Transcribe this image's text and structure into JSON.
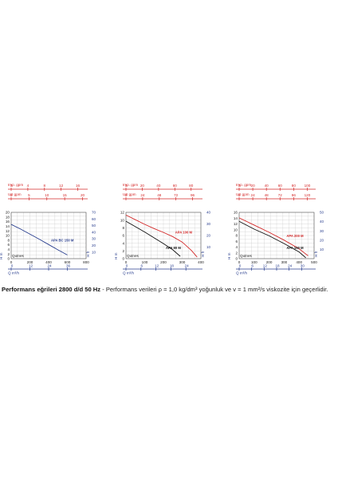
{
  "caption": {
    "bold": "Performans eğrileri 2800 d/d 50 Hz",
    "rest": " - Performans verileri ρ = 1,0 kg/dm³ yoğunluk ve  v = 1 mm²/s viskozite için geçerlidir."
  },
  "colors": {
    "blue": "#2a3f8f",
    "red": "#d42a2a",
    "black": "#111111",
    "grid": "#c8c8c8"
  },
  "chart_data": [
    {
      "type": "line",
      "name": "chart-1",
      "top_axes": [
        {
          "unit_label": "Imp. gpm",
          "color": "#d42a2a",
          "ticks": [
            "0",
            "4",
            "8",
            "12",
            "16"
          ],
          "range": [
            0,
            18
          ]
        },
        {
          "unit_label": "US gpm",
          "color": "#d42a2a",
          "ticks": [
            "0",
            "5",
            "10",
            "15",
            "20"
          ],
          "range": [
            0,
            21
          ]
        }
      ],
      "xlabel": "Qutnes",
      "xlabel_bottom": "Q m³/h",
      "xlim": [
        0,
        800
      ],
      "xticks": [
        0,
        200,
        400,
        600,
        800
      ],
      "xticks_bottom": [
        "0",
        "12",
        "24",
        "36"
      ],
      "ylim": [
        0,
        20
      ],
      "yticks": [
        0,
        2,
        4,
        6,
        8,
        10,
        12,
        14,
        16,
        18,
        20
      ],
      "ylabel_left": "H m",
      "right_axis": {
        "ylim": [
          0,
          70
        ],
        "yticks": [
          0,
          10,
          20,
          30,
          40,
          50,
          60,
          70
        ],
        "label": "H ft"
      },
      "series": [
        {
          "name": "APA BC 150 M",
          "color": "#2a3f8f",
          "x": [
            0,
            100,
            200,
            300,
            400,
            500,
            600
          ],
          "y": [
            14.8,
            12.8,
            10.6,
            8.4,
            6.1,
            3.8,
            1.6
          ]
        }
      ]
    },
    {
      "type": "line",
      "name": "chart-2",
      "top_axes": [
        {
          "unit_label": "Imp. gpm",
          "color": "#d42a2a",
          "ticks": [
            "0",
            "20",
            "40",
            "60",
            "80"
          ],
          "range": [
            0,
            92
          ]
        },
        {
          "unit_label": "US gpm",
          "color": "#d42a2a",
          "ticks": [
            "0",
            "24",
            "48",
            "72",
            "96"
          ],
          "range": [
            0,
            108
          ]
        }
      ],
      "xlabel": "Qutnes",
      "xlabel_bottom": "Q m³/h",
      "xlim": [
        0,
        400
      ],
      "xticks": [
        0,
        100,
        200,
        300,
        400
      ],
      "xticks_bottom": [
        "0",
        "6",
        "12",
        "18",
        "24"
      ],
      "ylim": [
        0,
        12
      ],
      "yticks": [
        0,
        2,
        4,
        6,
        8,
        10,
        12
      ],
      "ylabel_left": "H m",
      "right_axis": {
        "ylim": [
          0,
          40
        ],
        "yticks": [
          0,
          10,
          20,
          30,
          40
        ],
        "label": "H ft"
      },
      "series": [
        {
          "name": "APA 100 M",
          "color": "#d42a2a",
          "x": [
            0,
            50,
            100,
            150,
            200,
            250,
            300,
            350,
            380
          ],
          "y": [
            11.3,
            10.1,
            8.9,
            7.8,
            6.8,
            5.7,
            4.3,
            2.1,
            0.4
          ]
        },
        {
          "name": "APA 80 M",
          "color": "#111111",
          "x": [
            0,
            50,
            100,
            150,
            200,
            250,
            290
          ],
          "y": [
            9.7,
            8.3,
            6.9,
            5.4,
            3.9,
            2.3,
            0.6
          ]
        }
      ]
    },
    {
      "type": "line",
      "name": "chart-3",
      "top_axes": [
        {
          "unit_label": "Imp. gpm",
          "color": "#d42a2a",
          "ticks": [
            "0",
            "20",
            "40",
            "60",
            "80",
            "100"
          ],
          "range": [
            0,
            110
          ]
        },
        {
          "unit_label": "US gpm",
          "color": "#d42a2a",
          "ticks": [
            "0",
            "24",
            "48",
            "72",
            "96",
            "120"
          ],
          "range": [
            0,
            132
          ]
        }
      ],
      "xlabel": "Qutnes",
      "xlabel_bottom": "Q m³/h",
      "xlim": [
        0,
        500
      ],
      "xticks": [
        0,
        100,
        200,
        300,
        400,
        500
      ],
      "xticks_bottom": [
        "0",
        "6",
        "12",
        "18",
        "24",
        "30"
      ],
      "ylim": [
        0,
        16
      ],
      "yticks": [
        0,
        2,
        4,
        6,
        8,
        10,
        12,
        14,
        16
      ],
      "ylabel_left": "H m",
      "right_axis": {
        "ylim": [
          0,
          50
        ],
        "yticks": [
          0,
          10,
          20,
          30,
          40,
          50
        ],
        "label": "H ft"
      },
      "series": [
        {
          "name": "APA 200 M",
          "color": "#d42a2a",
          "x": [
            0,
            100,
            200,
            300,
            400,
            460
          ],
          "y": [
            14.1,
            11.6,
            9.1,
            6.4,
            3.4,
            1.0
          ]
        },
        {
          "name": "APA 150 M",
          "color": "#111111",
          "x": [
            0,
            100,
            200,
            300,
            400,
            445
          ],
          "y": [
            12.9,
            10.2,
            7.9,
            5.2,
            2.3,
            0.3
          ]
        }
      ]
    }
  ]
}
